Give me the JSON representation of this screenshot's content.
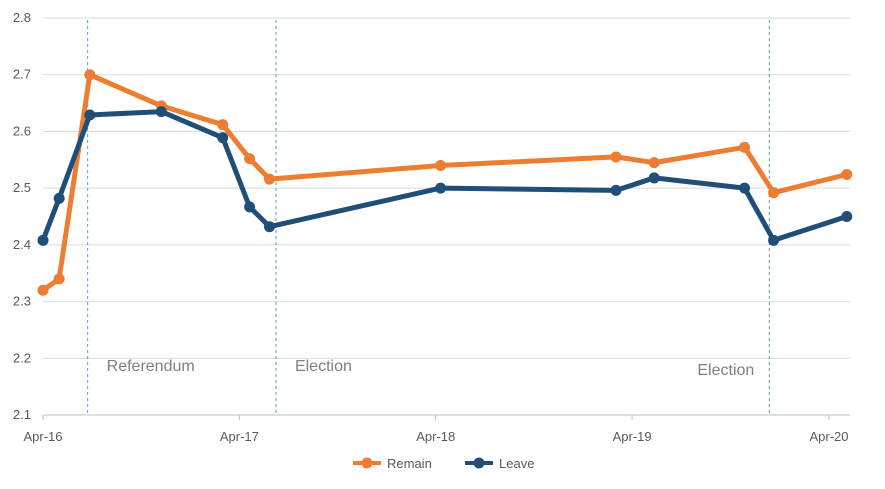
{
  "chart_data": {
    "type": "line",
    "title": "",
    "xlabel": "",
    "ylabel": "",
    "x_ticks": [
      "2016-04-01",
      "2017-04-01",
      "2018-04-01",
      "2019-04-01",
      "2020-04-01"
    ],
    "x_tick_labels": [
      "Apr-16",
      "Apr-17",
      "Apr-18",
      "Apr-19",
      "Apr-20"
    ],
    "xlim": [
      "2016-04-01",
      "2020-05-10"
    ],
    "ylim": [
      2.1,
      2.8
    ],
    "y_ticks": [
      2.1,
      2.2,
      2.3,
      2.4,
      2.5,
      2.6,
      2.7,
      2.8
    ],
    "y_tick_labels": [
      "2.1",
      "2.2",
      "2.3",
      "2.4",
      "2.5",
      "2.6",
      "2.7",
      "2.8"
    ],
    "grid": true,
    "legend_position": "bottom",
    "series": [
      {
        "name": "Remain",
        "color": "#ed7d31",
        "points": [
          {
            "x": "2016-04-01",
            "y": 2.32
          },
          {
            "x": "2016-05-01",
            "y": 2.34
          },
          {
            "x": "2016-06-27",
            "y": 2.7
          },
          {
            "x": "2016-11-07",
            "y": 2.645
          },
          {
            "x": "2017-03-01",
            "y": 2.612
          },
          {
            "x": "2017-04-20",
            "y": 2.552
          },
          {
            "x": "2017-05-27",
            "y": 2.516
          },
          {
            "x": "2018-04-10",
            "y": 2.54
          },
          {
            "x": "2019-03-02",
            "y": 2.555
          },
          {
            "x": "2019-05-12",
            "y": 2.545
          },
          {
            "x": "2019-10-27",
            "y": 2.572
          },
          {
            "x": "2019-12-20",
            "y": 2.492
          },
          {
            "x": "2020-05-04",
            "y": 2.524
          }
        ]
      },
      {
        "name": "Leave",
        "color": "#1f4e79",
        "points": [
          {
            "x": "2016-04-01",
            "y": 2.408
          },
          {
            "x": "2016-05-01",
            "y": 2.482
          },
          {
            "x": "2016-06-27",
            "y": 2.629
          },
          {
            "x": "2016-11-07",
            "y": 2.635
          },
          {
            "x": "2017-03-01",
            "y": 2.589
          },
          {
            "x": "2017-04-20",
            "y": 2.467
          },
          {
            "x": "2017-05-27",
            "y": 2.432
          },
          {
            "x": "2018-04-10",
            "y": 2.5
          },
          {
            "x": "2019-03-02",
            "y": 2.496
          },
          {
            "x": "2019-05-12",
            "y": 2.518
          },
          {
            "x": "2019-10-27",
            "y": 2.5
          },
          {
            "x": "2019-12-20",
            "y": 2.408
          },
          {
            "x": "2020-05-04",
            "y": 2.45
          }
        ]
      }
    ],
    "annotations": [
      {
        "date": "2016-06-23",
        "text": "Referendum"
      },
      {
        "date": "2017-06-08",
        "text": "Election"
      },
      {
        "date": "2019-12-12",
        "text": "Election"
      }
    ]
  }
}
